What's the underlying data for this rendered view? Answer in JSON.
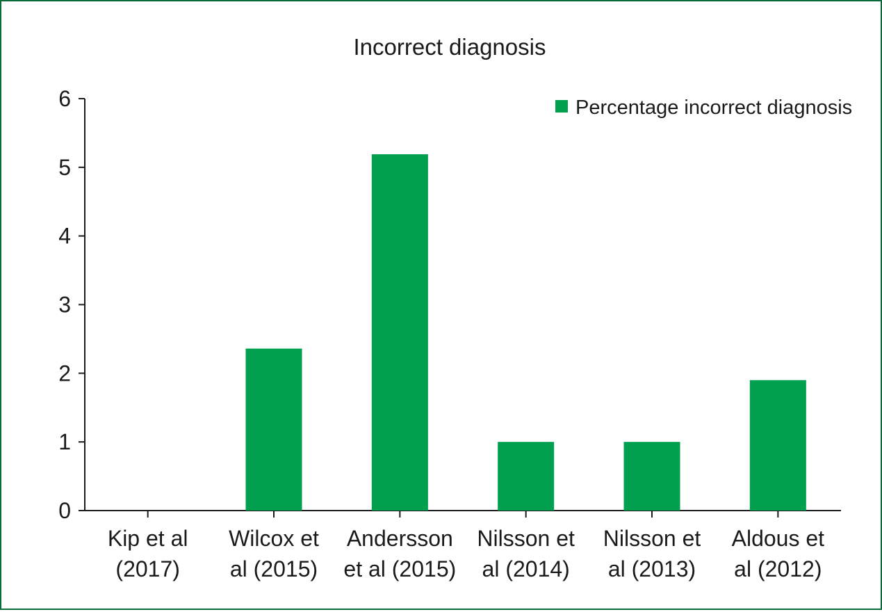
{
  "chart_data": {
    "type": "bar",
    "title": "Incorrect diagnosis",
    "xlabel": "",
    "ylabel": "",
    "categories": [
      [
        "Kip et al",
        "(2017)"
      ],
      [
        "Wilcox et",
        "al (2015)"
      ],
      [
        "Andersson",
        "et al (2015)"
      ],
      [
        "Nilsson et",
        "al (2014)"
      ],
      [
        "Nilsson et",
        "al (2013)"
      ],
      [
        "Aldous et",
        "al (2012)"
      ]
    ],
    "series": [
      {
        "name": "Percentage incorrect diagnosis",
        "color": "#00a04f",
        "values": [
          0,
          2.36,
          5.19,
          1.0,
          1.0,
          1.9
        ]
      }
    ],
    "ylim": [
      0,
      6
    ],
    "yticks": [
      "0",
      "1",
      "2",
      "3",
      "4",
      "5",
      "6"
    ],
    "grid": false,
    "legend_position": "top-right"
  }
}
